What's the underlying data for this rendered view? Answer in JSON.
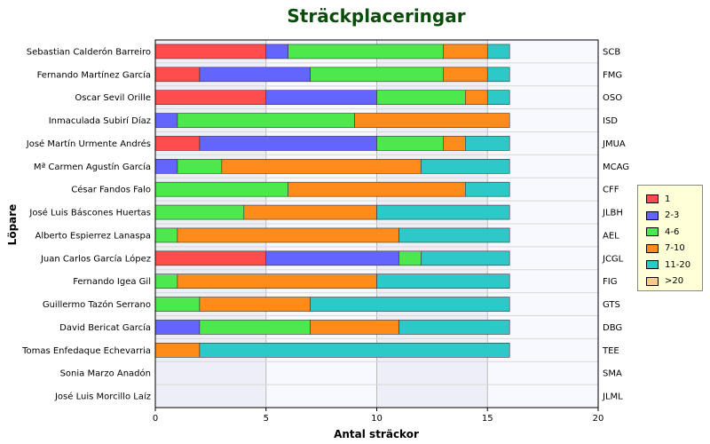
{
  "chart_data": {
    "type": "bar",
    "orientation": "horizontal",
    "stacked": true,
    "title": "Sträckplaceringar",
    "xlabel": "Antal sträckor",
    "ylabel": "Löpare",
    "xlim": [
      0,
      20
    ],
    "xticks": [
      0,
      5,
      10,
      15,
      20
    ],
    "grid": true,
    "legend_position": "right",
    "categories": [
      "Sebastian Calderón Barreiro",
      "Fernando Martínez García",
      "Oscar Sevil Orille",
      "Inmaculada Subirí Díaz",
      "José Martín Urmente Andrés",
      "Mª Carmen Agustín García",
      "César Fandos Falo",
      "José Luis Báscones Huertas",
      "Alberto Espierrez Lanaspa",
      "Juan Carlos García López",
      "Fernando Igea Gil",
      "Guillermo Tazón Serrano",
      "David Bericat García",
      "Tomas Enfedaque Echevarria",
      "Sonia Marzo Anadón",
      "José Luis Morcillo Laíz"
    ],
    "codes": [
      "SCB",
      "FMG",
      "OSO",
      "ISD",
      "JMUA",
      "MCAG",
      "CFF",
      "JLBH",
      "AEL",
      "JCGL",
      "FIG",
      "GTS",
      "DBG",
      "TEE",
      "SMA",
      "JLML"
    ],
    "series": [
      {
        "name": "1",
        "color": "#ff4d4d",
        "values": [
          5,
          2,
          5,
          0,
          2,
          0,
          0,
          0,
          0,
          5,
          0,
          0,
          0,
          0,
          0,
          0
        ]
      },
      {
        "name": "2-3",
        "color": "#6464ff",
        "values": [
          1,
          5,
          5,
          1,
          8,
          1,
          0,
          0,
          0,
          6,
          0,
          0,
          2,
          0,
          0,
          0
        ]
      },
      {
        "name": "4-6",
        "color": "#4de84d",
        "values": [
          7,
          6,
          4,
          8,
          3,
          2,
          6,
          4,
          1,
          1,
          1,
          2,
          5,
          0,
          0,
          0
        ]
      },
      {
        "name": "7-10",
        "color": "#ff8c1a",
        "values": [
          2,
          2,
          1,
          7,
          1,
          9,
          8,
          6,
          10,
          0,
          9,
          5,
          4,
          2,
          0,
          0
        ]
      },
      {
        "name": "11-20",
        "color": "#2dc8c8",
        "values": [
          1,
          1,
          1,
          0,
          2,
          4,
          2,
          6,
          5,
          4,
          6,
          9,
          5,
          14,
          0,
          0
        ]
      },
      {
        "name": ">20",
        "color": "#ffc88c",
        "values": [
          0,
          0,
          0,
          0,
          0,
          0,
          0,
          0,
          0,
          0,
          0,
          0,
          0,
          0,
          0,
          0
        ]
      }
    ]
  },
  "colors": {
    "plot_background": "#f8f8ff",
    "band_background": "#eeeef6",
    "grid": "#bbbbbb",
    "title": "#0a4d0a"
  }
}
